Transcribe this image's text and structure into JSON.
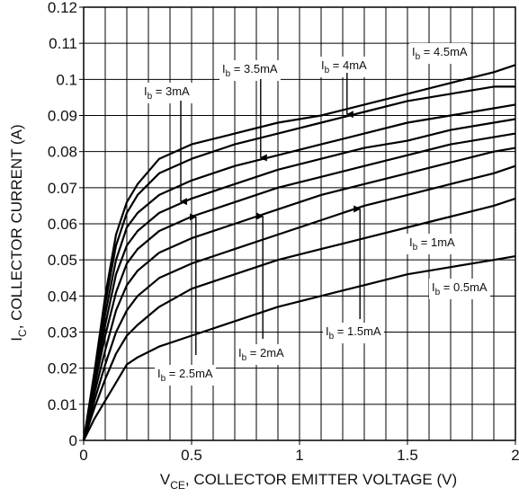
{
  "chart_data": {
    "type": "line",
    "title": "",
    "xlabel": {
      "main": "V",
      "sub": "CE",
      "rest": ", COLLECTOR EMITTER VOLTAGE (V)"
    },
    "ylabel": {
      "main": "I",
      "sub": "C",
      "rest": ", COLLECTOR CURRENT (A)"
    },
    "xlim": [
      0,
      2
    ],
    "ylim": [
      0,
      0.12
    ],
    "x_ticks": [
      0,
      0.5,
      1,
      1.5,
      2
    ],
    "x_tick_labels": [
      "0",
      "0.5",
      "1",
      "1.5",
      "2"
    ],
    "y_ticks": [
      0,
      0.01,
      0.02,
      0.03,
      0.04,
      0.05,
      0.06,
      0.07,
      0.08,
      0.09,
      0.1,
      0.11,
      0.12
    ],
    "y_tick_labels": [
      "0",
      "0.01",
      "0.02",
      "0.03",
      "0.04",
      "0.05",
      "0.06",
      "0.07",
      "0.08",
      "0.09",
      "0.1",
      "0.11",
      "0.12"
    ],
    "x_minor_step": 0.1,
    "y_minor_step": 0.01,
    "grid": true,
    "series": [
      {
        "name": "Ib = 0.5mA",
        "ib_sub": "b",
        "ib_value": " = 0.5mA",
        "x": [
          0,
          0.05,
          0.1,
          0.15,
          0.2,
          0.25,
          0.35,
          0.5,
          0.7,
          0.9,
          1.1,
          1.3,
          1.5,
          1.7,
          1.9,
          2.0
        ],
        "y": [
          0,
          0.006,
          0.011,
          0.016,
          0.021,
          0.023,
          0.026,
          0.029,
          0.033,
          0.037,
          0.04,
          0.043,
          0.046,
          0.048,
          0.05,
          0.051
        ]
      },
      {
        "name": "Ib = 1mA",
        "ib_sub": "b",
        "ib_value": " = 1mA",
        "x": [
          0,
          0.05,
          0.1,
          0.15,
          0.2,
          0.25,
          0.35,
          0.5,
          0.7,
          0.9,
          1.1,
          1.3,
          1.5,
          1.7,
          1.9,
          2.0
        ],
        "y": [
          0,
          0.009,
          0.017,
          0.024,
          0.029,
          0.032,
          0.037,
          0.042,
          0.046,
          0.05,
          0.053,
          0.056,
          0.059,
          0.062,
          0.065,
          0.067
        ]
      },
      {
        "name": "Ib = 1.5mA",
        "ib_sub": "b",
        "ib_value": " = 1.5mA",
        "x": [
          0,
          0.05,
          0.1,
          0.15,
          0.2,
          0.25,
          0.35,
          0.5,
          0.7,
          0.9,
          1.1,
          1.3,
          1.5,
          1.7,
          1.9,
          2.0
        ],
        "y": [
          0,
          0.011,
          0.021,
          0.03,
          0.036,
          0.04,
          0.045,
          0.049,
          0.053,
          0.057,
          0.061,
          0.065,
          0.068,
          0.071,
          0.074,
          0.076
        ]
      },
      {
        "name": "Ib = 2mA",
        "ib_sub": "b",
        "ib_value": " = 2mA",
        "x": [
          0,
          0.05,
          0.1,
          0.15,
          0.2,
          0.25,
          0.35,
          0.5,
          0.7,
          0.9,
          1.1,
          1.3,
          1.5,
          1.7,
          1.9,
          2.0
        ],
        "y": [
          0,
          0.013,
          0.025,
          0.036,
          0.043,
          0.047,
          0.052,
          0.056,
          0.06,
          0.064,
          0.068,
          0.071,
          0.074,
          0.077,
          0.08,
          0.081
        ]
      },
      {
        "name": "Ib = 2.5mA",
        "ib_sub": "b",
        "ib_value": " = 2.5mA",
        "x": [
          0,
          0.05,
          0.1,
          0.15,
          0.2,
          0.25,
          0.35,
          0.5,
          0.7,
          0.9,
          1.1,
          1.3,
          1.5,
          1.7,
          1.9,
          2.0
        ],
        "y": [
          0,
          0.015,
          0.029,
          0.041,
          0.049,
          0.053,
          0.058,
          0.062,
          0.066,
          0.07,
          0.073,
          0.076,
          0.079,
          0.082,
          0.084,
          0.085
        ]
      },
      {
        "name": "Ib = 3mA",
        "ib_sub": "b",
        "ib_value": " = 3mA",
        "x": [
          0,
          0.05,
          0.1,
          0.15,
          0.2,
          0.25,
          0.35,
          0.5,
          0.7,
          0.9,
          1.1,
          1.3,
          1.5,
          1.7,
          1.9,
          2.0
        ],
        "y": [
          0,
          0.016,
          0.032,
          0.046,
          0.054,
          0.058,
          0.063,
          0.067,
          0.071,
          0.075,
          0.078,
          0.081,
          0.083,
          0.086,
          0.088,
          0.089
        ]
      },
      {
        "name": "Ib = 3.5mA",
        "ib_sub": "b",
        "ib_value": " = 3.5mA",
        "x": [
          0,
          0.05,
          0.1,
          0.15,
          0.2,
          0.25,
          0.35,
          0.5,
          0.7,
          0.9,
          1.1,
          1.3,
          1.5,
          1.7,
          1.9,
          2.0
        ],
        "y": [
          0,
          0.017,
          0.035,
          0.05,
          0.059,
          0.063,
          0.068,
          0.072,
          0.076,
          0.079,
          0.082,
          0.085,
          0.088,
          0.09,
          0.092,
          0.093
        ]
      },
      {
        "name": "Ib = 4mA",
        "ib_sub": "b",
        "ib_value": " = 4mA",
        "x": [
          0,
          0.05,
          0.1,
          0.15,
          0.2,
          0.25,
          0.35,
          0.5,
          0.7,
          0.9,
          1.1,
          1.3,
          1.5,
          1.7,
          1.9,
          2.0
        ],
        "y": [
          0,
          0.018,
          0.038,
          0.054,
          0.063,
          0.068,
          0.074,
          0.078,
          0.082,
          0.085,
          0.088,
          0.091,
          0.094,
          0.096,
          0.098,
          0.098
        ]
      },
      {
        "name": "Ib = 4.5mA",
        "ib_sub": "b",
        "ib_value": " = 4.5mA",
        "x": [
          0,
          0.05,
          0.1,
          0.15,
          0.2,
          0.25,
          0.35,
          0.5,
          0.7,
          0.9,
          1.1,
          1.3,
          1.5,
          1.7,
          1.9,
          2.0
        ],
        "y": [
          0,
          0.019,
          0.04,
          0.057,
          0.066,
          0.071,
          0.078,
          0.082,
          0.085,
          0.088,
          0.09,
          0.093,
          0.096,
          0.099,
          0.102,
          0.104
        ]
      }
    ],
    "annotations": [
      {
        "label_main": "I",
        "label_sub": "b",
        "label_rest": " = 4.5mA",
        "series": "Ib = 4.5mA",
        "arrow": false
      },
      {
        "label_main": "I",
        "label_sub": "b",
        "label_rest": " = 4mA",
        "series": "Ib = 4mA",
        "arrow": true
      },
      {
        "label_main": "I",
        "label_sub": "b",
        "label_rest": " = 3.5mA",
        "series": "Ib = 3.5mA",
        "arrow": true
      },
      {
        "label_main": "I",
        "label_sub": "b",
        "label_rest": " = 3mA",
        "series": "Ib = 3mA",
        "arrow": true
      },
      {
        "label_main": "I",
        "label_sub": "b",
        "label_rest": " = 2.5mA",
        "series": "Ib = 2.5mA",
        "arrow": true
      },
      {
        "label_main": "I",
        "label_sub": "b",
        "label_rest": " = 2mA",
        "series": "Ib = 2mA",
        "arrow": true
      },
      {
        "label_main": "I",
        "label_sub": "b",
        "label_rest": " = 1.5mA",
        "series": "Ib = 1.5mA",
        "arrow": true
      },
      {
        "label_main": "I",
        "label_sub": "b",
        "label_rest": " = 1mA",
        "series": "Ib = 1mA",
        "arrow": false
      },
      {
        "label_main": "I",
        "label_sub": "b",
        "label_rest": " = 0.5mA",
        "series": "Ib = 0.5mA",
        "arrow": false
      }
    ]
  }
}
